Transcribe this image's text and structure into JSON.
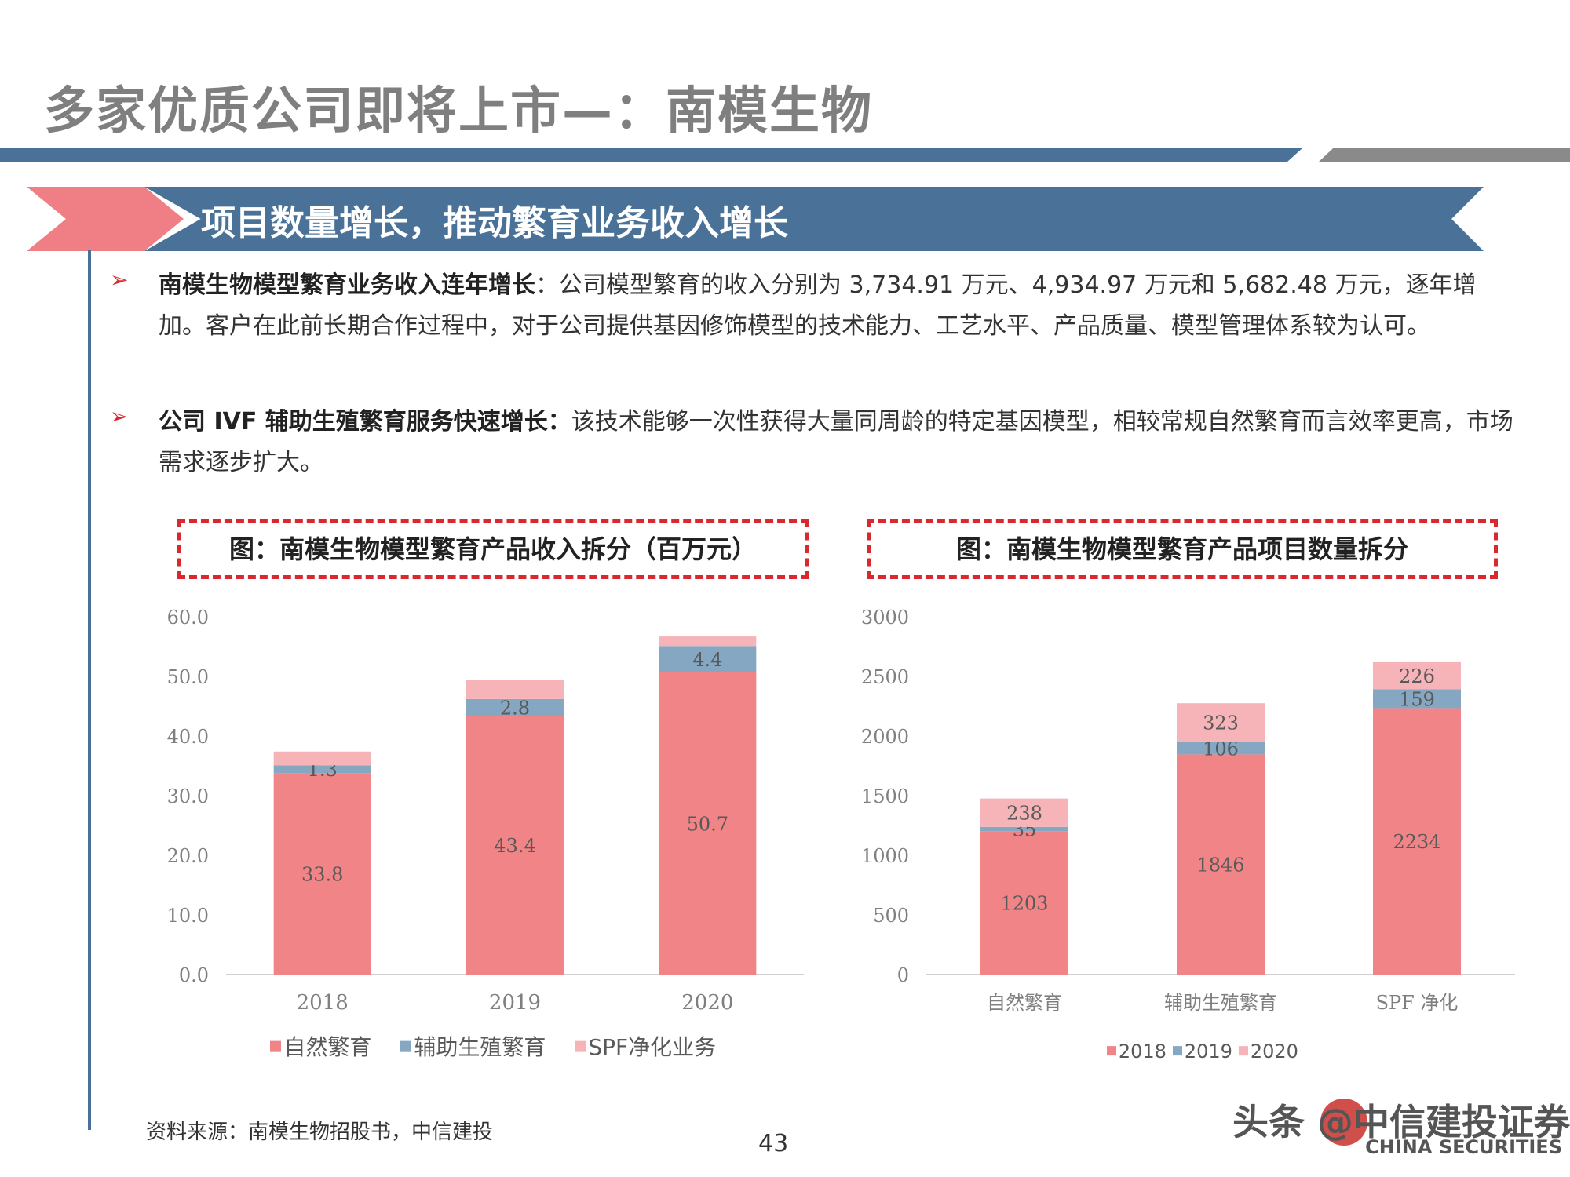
{
  "page_title": "多家优质公司即将上市—：南模生物",
  "section_banner": "项目数量增长，推动繁育业务收入增长",
  "bullets": [
    {
      "heading": "南模生物模型繁育业务收入连年增长",
      "body": "：公司模型繁育的收入分别为 3,734.91 万元、4,934.97 万元和 5,682.48 万元，逐年增加。客户在此前长期合作过程中，对于公司提供基因修饰模型的技术能力、工艺水平、产品质量、模型管理体系较为认可。"
    },
    {
      "heading": "公司 IVF 辅助生殖繁育服务快速增长：",
      "body": "该技术能够一次性获得大量同周龄的特定基因模型，相较常规自然繁育而言效率更高，市场需求逐步扩大。"
    }
  ],
  "chart_titles": [
    "图：南模生物模型繁育产品收入拆分（百万元）",
    "图：南模生物模型繁育产品项目数量拆分"
  ],
  "chart_data": [
    {
      "type": "bar",
      "stacked": true,
      "categories": [
        "2018",
        "2019",
        "2020"
      ],
      "series": [
        {
          "name": "自然繁育",
          "values": [
            33.8,
            43.4,
            50.7
          ],
          "color": "#f08486"
        },
        {
          "name": "辅助生殖繁育",
          "values": [
            1.3,
            2.8,
            4.4
          ],
          "color": "#86a7c2"
        },
        {
          "name": "SPF净化业务",
          "values": [
            2.3,
            3.2,
            1.6
          ],
          "color": "#f7b4b8"
        }
      ],
      "data_labels": [
        [
          "33.8",
          "43.4",
          "50.7"
        ],
        [
          "1.3",
          "2.8",
          "4.4"
        ],
        [
          "",
          "",
          ""
        ]
      ],
      "ylim": [
        0,
        60
      ],
      "yticks": [
        "0.0",
        "10.0",
        "20.0",
        "30.0",
        "40.0",
        "50.0",
        "60.0"
      ],
      "legend_position": "bottom"
    },
    {
      "type": "bar",
      "stacked": true,
      "categories": [
        "自然繁育",
        "辅助生殖繁育",
        "SPF 净化"
      ],
      "series": [
        {
          "name": "2018",
          "values": [
            1203,
            1846,
            2234
          ],
          "color": "#f08486"
        },
        {
          "name": "2019",
          "values": [
            35,
            106,
            159
          ],
          "color": "#86a7c2"
        },
        {
          "name": "2020",
          "values": [
            238,
            323,
            226
          ],
          "color": "#f7b4b8"
        }
      ],
      "data_labels": [
        [
          "1203",
          "1846",
          "2234"
        ],
        [
          "35",
          "106",
          "159"
        ],
        [
          "238",
          "323",
          "226"
        ]
      ],
      "ylim": [
        0,
        3000
      ],
      "yticks": [
        "0",
        "500",
        "1000",
        "1500",
        "2000",
        "2500",
        "3000"
      ],
      "legend_position": "bottom"
    }
  ],
  "source": "资料来源：南模生物招股书，中信建投",
  "page_number": "43",
  "watermark": {
    "main": "头条 @中信建投证券",
    "sub": "CHINA SECURITIES"
  }
}
